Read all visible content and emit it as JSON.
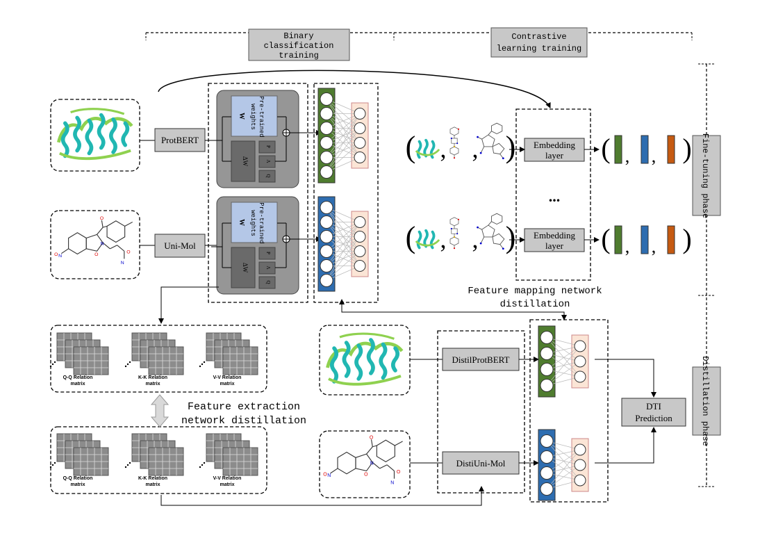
{
  "header": {
    "binary_training": [
      "Binary",
      "classification",
      "training"
    ],
    "contrastive_training": [
      "Contrastive",
      "learning training"
    ]
  },
  "phases": {
    "fine_tuning": "Fine-tuning phase",
    "distillation": "Distillation phase"
  },
  "encoders": {
    "protbert": "ProtBERT",
    "unimol": "Uni-Mol",
    "distil_protbert": "DistilProtBERT",
    "distil_unimol": "DistiUni-Mol"
  },
  "lora": {
    "pretrained": [
      "Pre-trained",
      "weights"
    ],
    "w": "W",
    "delta_w": "ΔW",
    "p": "P",
    "lambda": "Λ",
    "q": "Q"
  },
  "embedding": {
    "label": [
      "Embedding",
      "layer"
    ],
    "ellipsis": "..."
  },
  "distillation_labels": {
    "feature_mapping": [
      "Feature mapping network",
      "distillation"
    ],
    "feature_extraction": [
      "Feature extraction",
      "network distillation"
    ]
  },
  "relation_matrices": {
    "qq": [
      "Q-Q Relation",
      "matrix"
    ],
    "kk": [
      "K-K Relation",
      "matrix"
    ],
    "vv": [
      "V-V Relation",
      "matrix"
    ]
  },
  "prediction": [
    "DTI",
    "Prediction"
  ],
  "colors": {
    "green": "#4f7c2f",
    "blue": "#2e6db0",
    "orange": "#c55a11",
    "peach": "#fbe5d6",
    "gray_box": "#c8c8c8",
    "lora_bg": "#969696",
    "lora_blue": "#b4c7e7",
    "protein_cyan": "#21b7b2",
    "protein_green": "#8fd14f"
  }
}
